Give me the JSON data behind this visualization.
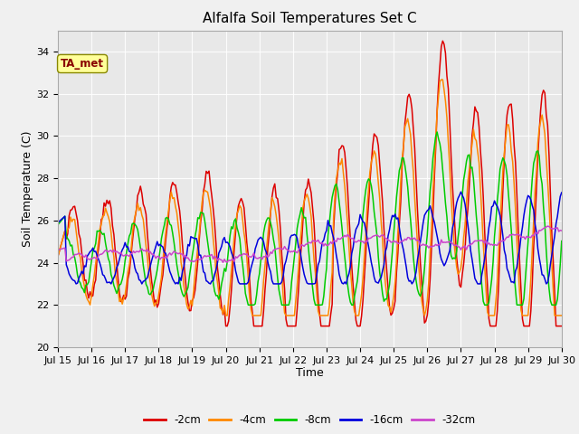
{
  "title": "Alfalfa Soil Temperatures Set C",
  "xlabel": "Time",
  "ylabel": "Soil Temperature (C)",
  "ylim": [
    20,
    35
  ],
  "xlim": [
    0,
    360
  ],
  "fig_bg_color": "#f0f0f0",
  "plot_bg_color": "#e8e8e8",
  "annotation_label": "TA_met",
  "annotation_color": "#880000",
  "annotation_bg": "#ffff99",
  "annotation_edge": "#888800",
  "series_colors": [
    "#dd0000",
    "#ff8800",
    "#00cc00",
    "#0000dd",
    "#cc44cc"
  ],
  "series_labels": [
    "-2cm",
    "-4cm",
    "-8cm",
    "-16cm",
    "-32cm"
  ],
  "tick_labels": [
    "Jul 15",
    "Jul 16",
    "Jul 17",
    "Jul 18",
    "Jul 19",
    "Jul 20",
    "Jul 21",
    "Jul 22",
    "Jul 23",
    "Jul 24",
    "Jul 25",
    "Jul 26",
    "Jul 27",
    "Jul 28",
    "Jul 29",
    "Jul 30"
  ],
  "tick_positions": [
    0,
    24,
    48,
    72,
    96,
    120,
    144,
    168,
    192,
    216,
    240,
    264,
    288,
    312,
    336,
    360
  ],
  "yticks": [
    20,
    22,
    24,
    26,
    28,
    30,
    32,
    34
  ]
}
